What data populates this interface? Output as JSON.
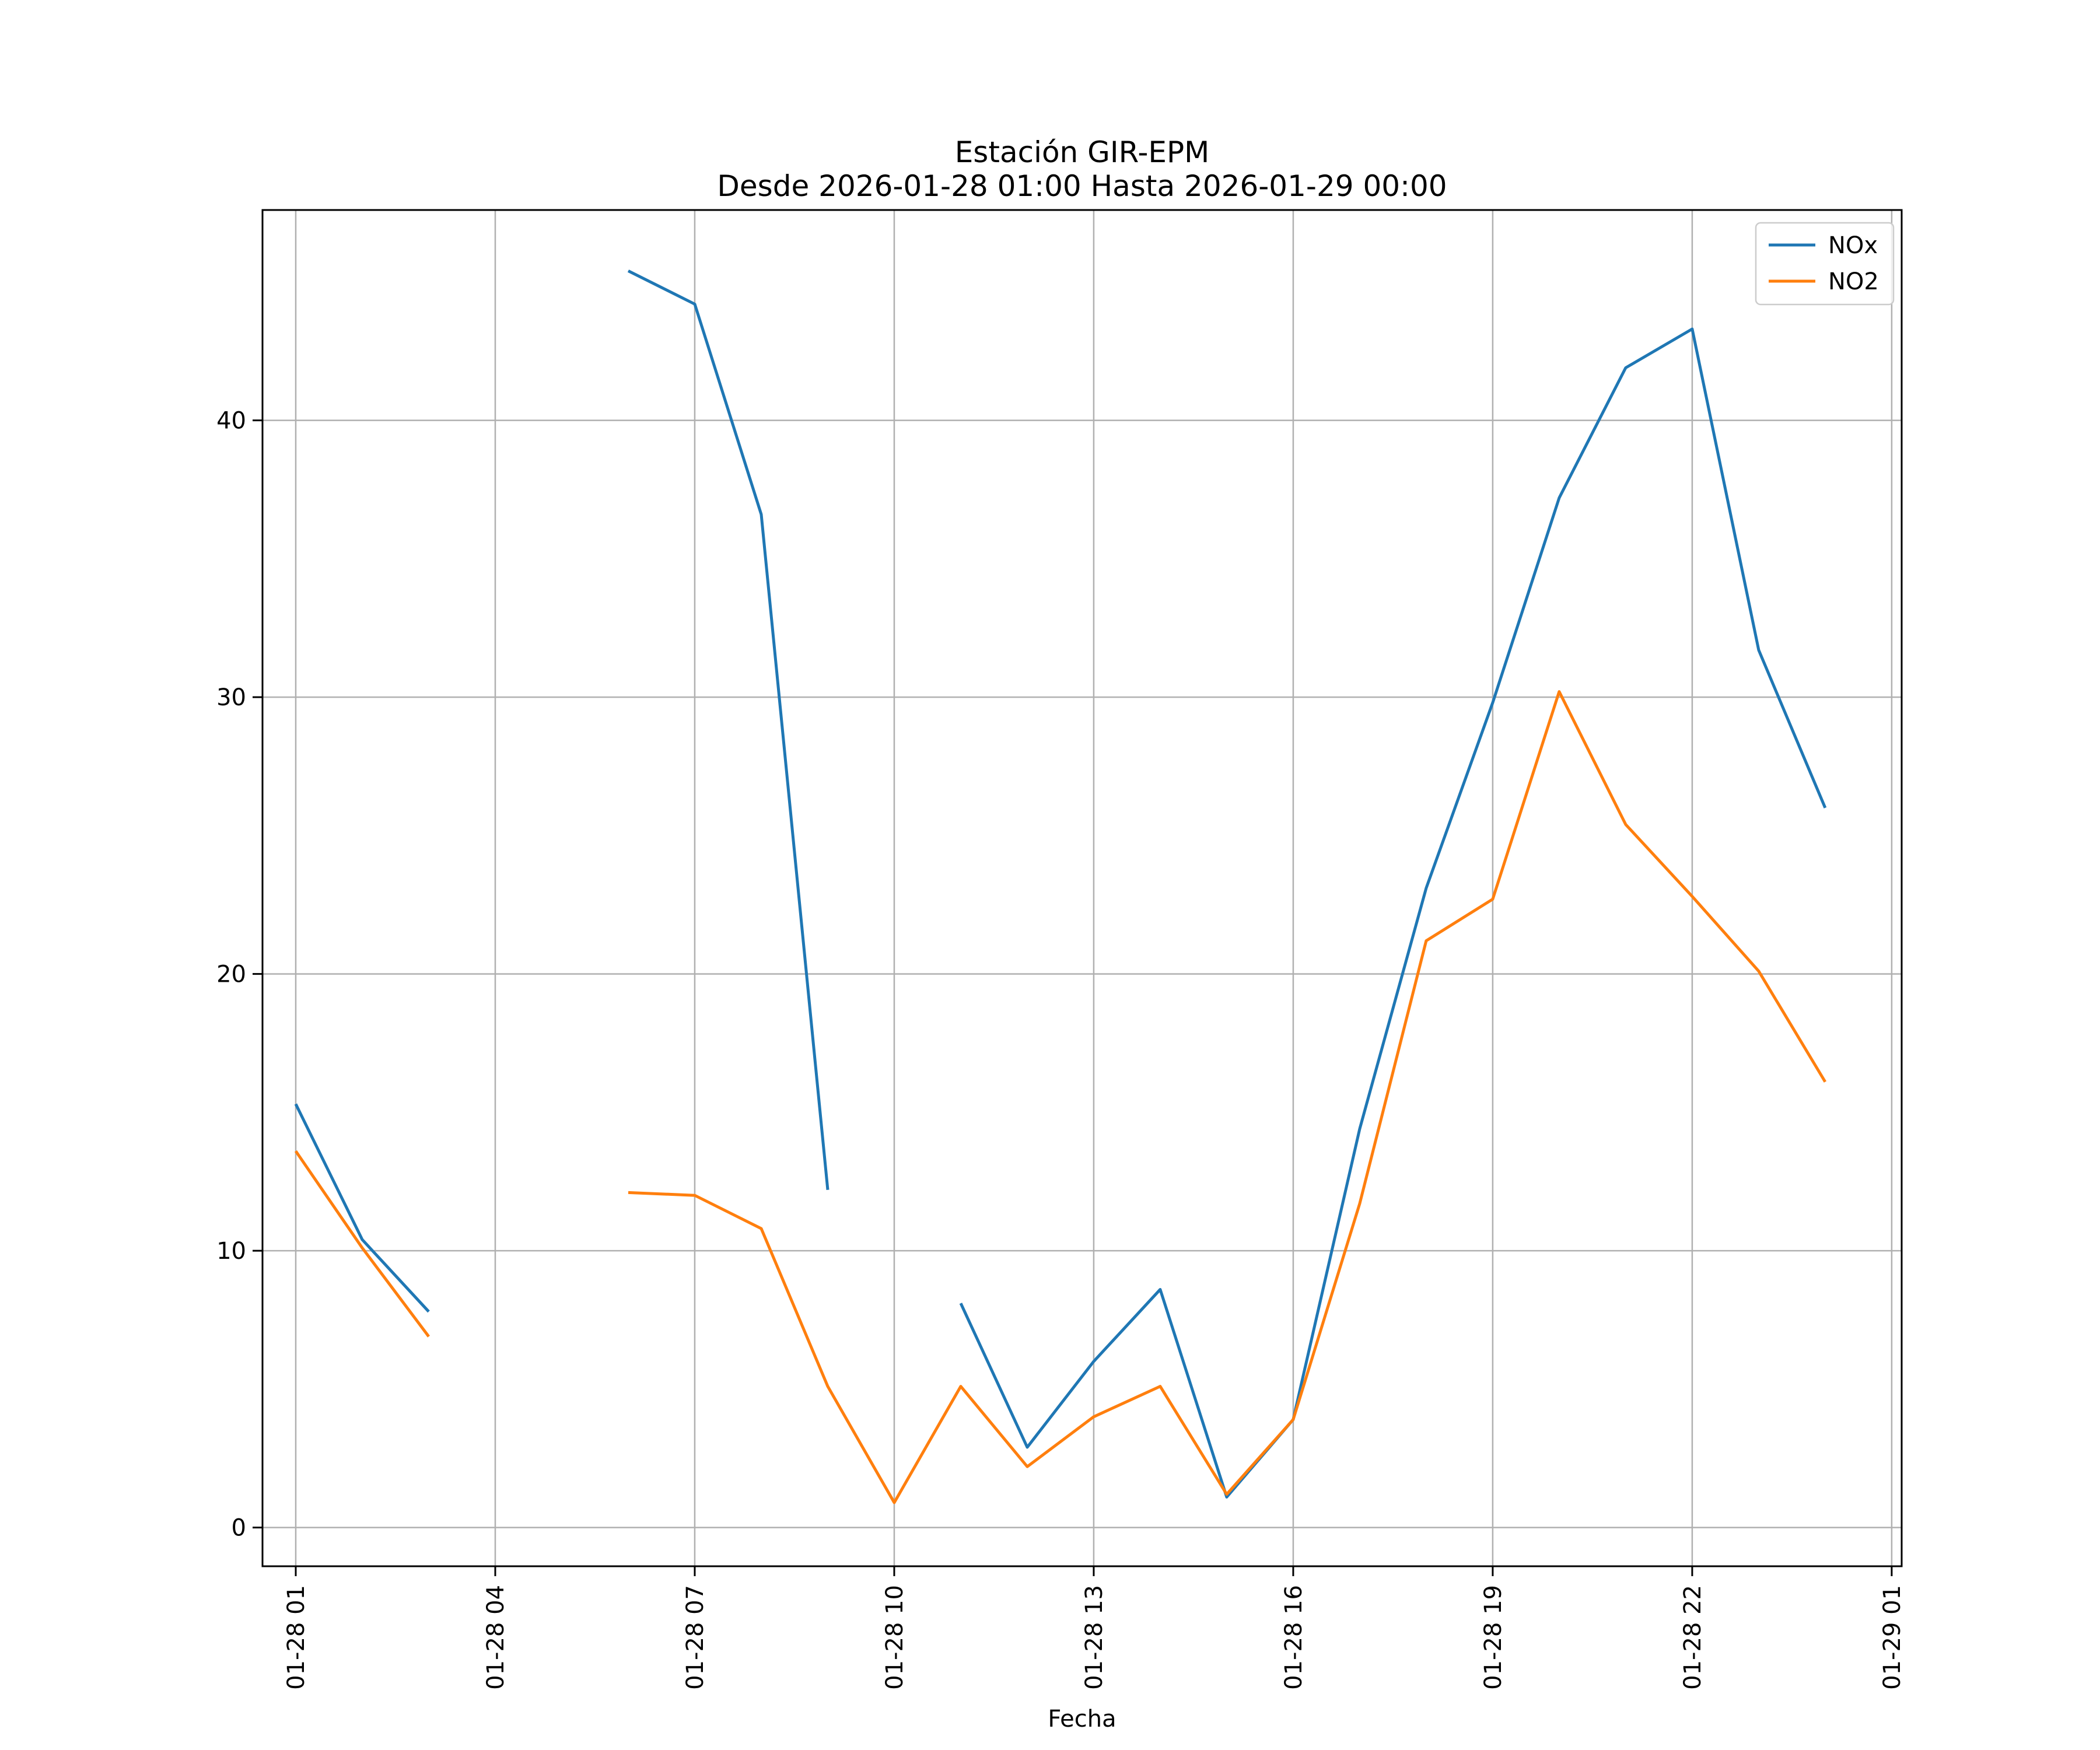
{
  "chart_data": {
    "type": "line",
    "title": "Estación GIR-EPM",
    "subtitle": "Desde 2026-01-28 01:00 Hasta 2026-01-29 00:00",
    "xlabel": "Fecha",
    "ylabel": "",
    "x": [
      "01:00",
      "02:00",
      "03:00",
      "04:00",
      "05:00",
      "06:00",
      "07:00",
      "08:00",
      "09:00",
      "10:00",
      "11:00",
      "12:00",
      "13:00",
      "14:00",
      "15:00",
      "16:00",
      "17:00",
      "18:00",
      "19:00",
      "20:00",
      "21:00",
      "22:00",
      "23:00",
      "00:00"
    ],
    "xlim_hours": [
      -0.5,
      24.15
    ],
    "ylim": [
      -1.4,
      47.6
    ],
    "xticks": [
      {
        "hour": 0,
        "label": "01-28 01"
      },
      {
        "hour": 3,
        "label": "01-28 04"
      },
      {
        "hour": 6,
        "label": "01-28 07"
      },
      {
        "hour": 9,
        "label": "01-28 10"
      },
      {
        "hour": 12,
        "label": "01-28 13"
      },
      {
        "hour": 15,
        "label": "01-28 16"
      },
      {
        "hour": 18,
        "label": "01-28 19"
      },
      {
        "hour": 21,
        "label": "01-28 22"
      },
      {
        "hour": 24,
        "label": "01-29 01"
      }
    ],
    "yticks": [
      0,
      10,
      20,
      30,
      40
    ],
    "grid": true,
    "legend_position": "top-right",
    "series": [
      {
        "name": "NOx",
        "color": "#1f77b4",
        "values": [
          15.3,
          10.4,
          7.8,
          null,
          null,
          45.4,
          44.2,
          36.6,
          12.2,
          null,
          8.1,
          2.9,
          6.0,
          8.6,
          1.1,
          3.9,
          14.4,
          23.1,
          29.8,
          37.2,
          41.9,
          43.3,
          31.7,
          26.0
        ]
      },
      {
        "name": "NO2",
        "color": "#ff7f0e",
        "values": [
          13.6,
          10.1,
          6.9,
          null,
          null,
          12.1,
          12.0,
          10.8,
          5.1,
          0.9,
          5.1,
          2.2,
          4.0,
          5.1,
          1.2,
          3.9,
          11.7,
          21.2,
          22.7,
          30.2,
          25.4,
          22.8,
          20.1,
          16.1
        ]
      }
    ]
  }
}
